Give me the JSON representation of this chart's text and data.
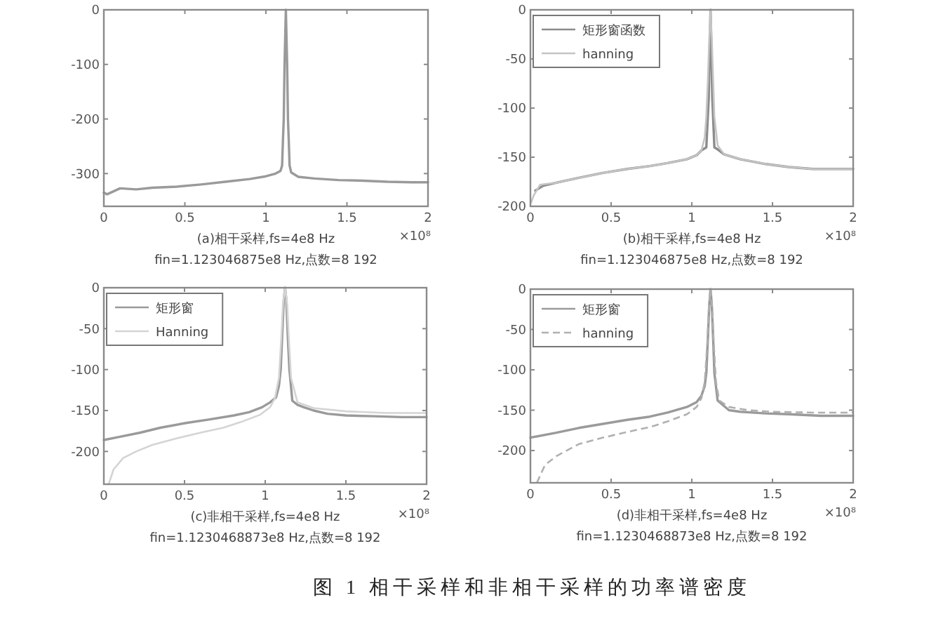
{
  "chart_data": [
    {
      "type": "line",
      "xlabel": "(a)相干采样,fs=4e8 Hz\nfin=1.123046875e8 Hz,点数=8 192",
      "annotations": [
        "×10⁸"
      ],
      "xlim": [
        0,
        2
      ],
      "ylim": [
        -360,
        0
      ],
      "xticks": [
        0,
        0.5,
        1,
        1.5,
        2
      ],
      "yticks": [
        0,
        -100,
        -200,
        -300
      ],
      "series": [
        {
          "color": "#9a9a9a",
          "x": [
            0,
            0.02,
            0.1,
            0.2,
            0.3,
            0.45,
            0.6,
            0.75,
            0.9,
            1.0,
            1.06,
            1.09,
            1.1,
            1.105,
            1.11,
            1.115,
            1.123,
            1.131,
            1.136,
            1.141,
            1.146,
            1.156,
            1.2,
            1.3,
            1.45,
            1.6,
            1.75,
            1.9,
            2
          ],
          "values": [
            -335,
            -338,
            -327,
            -329,
            -326,
            -324,
            -320,
            -315,
            -310,
            -305,
            -300,
            -295,
            -285,
            -240,
            -200,
            -100,
            0,
            -100,
            -200,
            -240,
            -285,
            -298,
            -306,
            -309,
            -312,
            -313,
            -315,
            -316,
            -316
          ]
        }
      ]
    },
    {
      "type": "line",
      "xlabel": "(b)相干采样,fs=4e8 Hz\nfin=1.123046875e8 Hz,点数=8 192",
      "annotations": [
        "×10⁸"
      ],
      "xlim": [
        0,
        2
      ],
      "ylim": [
        -200,
        0
      ],
      "xticks": [
        0,
        0.5,
        1,
        1.5,
        2
      ],
      "yticks": [
        0,
        -50,
        -100,
        -150,
        -200
      ],
      "legend": "top left",
      "series": [
        {
          "name": "矩形窗函数",
          "color": "#8c8c8c",
          "x": [
            0.03,
            0.08,
            0.16,
            0.3,
            0.45,
            0.6,
            0.74,
            0.85,
            0.97,
            1.03,
            1.06,
            1.09,
            1.105,
            1.112,
            1.116,
            1.12,
            1.127,
            1.14,
            1.16,
            1.2,
            1.3,
            1.46,
            1.6,
            1.75,
            1.9,
            2
          ],
          "values": [
            -184,
            -179,
            -176,
            -171,
            -166,
            -162,
            -159,
            -156,
            -152,
            -148,
            -143,
            -140,
            -90,
            -30,
            0,
            -30,
            -90,
            -140,
            -142,
            -147,
            -152,
            -157,
            -160,
            -162,
            -162,
            -162
          ]
        },
        {
          "name": "hanning",
          "color": "#c4c4c4",
          "x": [
            0.005,
            0.02,
            0.06,
            0.16,
            0.3,
            0.45,
            0.6,
            0.74,
            0.85,
            0.97,
            1.03,
            1.06,
            1.08,
            1.09,
            1.1,
            1.108,
            1.116,
            1.124,
            1.132,
            1.14,
            1.16,
            1.2,
            1.3,
            1.46,
            1.6,
            1.75,
            1.9,
            2
          ],
          "values": [
            -196,
            -189,
            -178,
            -176,
            -171,
            -166,
            -162,
            -159,
            -156,
            -152,
            -148,
            -143,
            -130,
            -109,
            -70,
            -30,
            0,
            -30,
            -70,
            -109,
            -138,
            -147,
            -152,
            -157,
            -160,
            -162,
            -162,
            -162
          ]
        }
      ]
    },
    {
      "type": "line",
      "xlabel": "(c)非相干采样,fs=4e8 Hz\nfin=1.1230468873e8 Hz,点数=8 192",
      "annotations": [
        "×10⁸"
      ],
      "xlim": [
        0,
        2
      ],
      "ylim": [
        -240,
        0
      ],
      "xticks": [
        0,
        0.5,
        1,
        1.5,
        2
      ],
      "yticks": [
        0,
        -50,
        -100,
        -150,
        -200
      ],
      "legend": "top left",
      "series": [
        {
          "name": "矩形窗",
          "color": "#9a9a9a",
          "x": [
            0,
            0.1,
            0.226,
            0.35,
            0.516,
            0.65,
            0.806,
            0.9,
            0.98,
            1.03,
            1.067,
            1.085,
            1.096,
            1.105,
            1.115,
            1.123,
            1.131,
            1.14,
            1.15,
            1.168,
            1.2,
            1.24,
            1.3,
            1.386,
            1.5,
            1.675,
            1.85,
            2
          ],
          "values": [
            -186,
            -182,
            -177,
            -171,
            -165,
            -161,
            -156,
            -152,
            -146,
            -140,
            -134,
            -120,
            -100,
            -60,
            -15,
            0,
            -15,
            -60,
            -100,
            -138,
            -143,
            -146,
            -150,
            -154,
            -156,
            -157,
            -158,
            -158
          ]
        },
        {
          "name": "Hanning",
          "color": "#d4d4d4",
          "x": [
            0.03,
            0.06,
            0.12,
            0.2,
            0.3,
            0.45,
            0.6,
            0.74,
            0.85,
            0.97,
            1.03,
            1.06,
            1.085,
            1.1,
            1.11,
            1.123,
            1.136,
            1.146,
            1.16,
            1.2,
            1.3,
            1.5,
            1.75,
            2
          ],
          "values": [
            -240,
            -222,
            -208,
            -200,
            -192,
            -184,
            -177,
            -171,
            -164,
            -155,
            -146,
            -135,
            -110,
            -60,
            -20,
            0,
            -20,
            -60,
            -110,
            -140,
            -147,
            -151,
            -153,
            -153
          ]
        }
      ]
    },
    {
      "type": "line",
      "xlabel": "(d)非相干采样,fs=4e8 Hz\nfin=1.1230468873e8 Hz,点数=8 192",
      "annotations": [
        "×10⁸"
      ],
      "xlim": [
        0,
        2
      ],
      "ylim": [
        -240,
        0
      ],
      "xticks": [
        0,
        0.5,
        1,
        1.5,
        2
      ],
      "yticks": [
        0,
        -50,
        -100,
        -150,
        -200
      ],
      "legend": "top left",
      "series": [
        {
          "name": "矩形窗",
          "color": "#9a9a9a",
          "x": [
            0,
            0.16,
            0.3,
            0.45,
            0.6,
            0.74,
            0.85,
            0.97,
            1.03,
            1.06,
            1.08,
            1.09,
            1.1,
            1.108,
            1.116,
            1.124,
            1.132,
            1.14,
            1.16,
            1.23,
            1.3,
            1.46,
            1.6,
            1.8,
            2
          ],
          "values": [
            -184,
            -178,
            -172,
            -167,
            -162,
            -158,
            -153,
            -146,
            -140,
            -132,
            -120,
            -104,
            -60,
            -20,
            0,
            -20,
            -60,
            -104,
            -138,
            -150,
            -152,
            -154,
            -155,
            -157,
            -157
          ]
        },
        {
          "name": "hanning",
          "color": "#b0b0b0",
          "line_style": "dashed",
          "x": [
            0.04,
            0.09,
            0.16,
            0.3,
            0.45,
            0.6,
            0.74,
            0.85,
            0.97,
            1.03,
            1.06,
            1.08,
            1.095,
            1.105,
            1.116,
            1.127,
            1.137,
            1.15,
            1.17,
            1.23,
            1.35,
            1.5,
            1.75,
            2
          ],
          "values": [
            -240,
            -218,
            -207,
            -192,
            -184,
            -177,
            -171,
            -164,
            -155,
            -146,
            -135,
            -115,
            -70,
            -25,
            0,
            -25,
            -70,
            -115,
            -138,
            -146,
            -150,
            -152,
            -153,
            -153
          ]
        }
      ]
    },
    {
      "type": "other",
      "title": "图 1 相干采样和非相干采样的功率谱密度"
    }
  ]
}
